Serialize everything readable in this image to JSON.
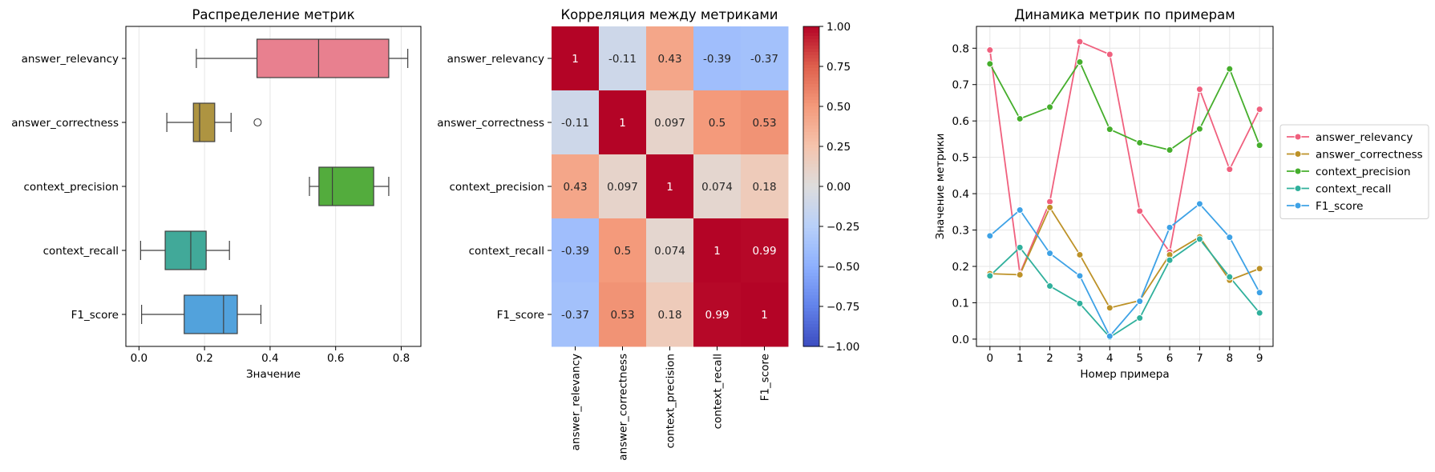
{
  "chart_data": [
    {
      "type": "box",
      "title": "Распределение метрик",
      "xlabel": "Значение",
      "ylabel": "",
      "xlim": [
        -0.04,
        0.86
      ],
      "xticks": [
        0.0,
        0.2,
        0.4,
        0.6,
        0.8
      ],
      "xtick_labels": [
        "0.0",
        "0.2",
        "0.4",
        "0.6",
        "0.8"
      ],
      "grid": "vertical",
      "categories": [
        "answer_relevancy",
        "answer_correctness",
        "context_precision",
        "context_recall",
        "F1_score"
      ],
      "boxes": [
        {
          "name": "answer_relevancy",
          "whisker_low": 0.175,
          "q1": 0.36,
          "median": 0.548,
          "q3": 0.762,
          "whisker_high": 0.82,
          "outliers": [],
          "color": "#e8808f"
        },
        {
          "name": "answer_correctness",
          "whisker_low": 0.085,
          "q1": 0.166,
          "median": 0.185,
          "q3": 0.231,
          "whisker_high": 0.281,
          "outliers": [
            0.362
          ],
          "color": "#ae9441"
        },
        {
          "name": "context_precision",
          "whisker_low": 0.52,
          "q1": 0.549,
          "median": 0.59,
          "q3": 0.716,
          "whisker_high": 0.762,
          "outliers": [],
          "color": "#53ac3d"
        },
        {
          "name": "context_recall",
          "whisker_low": 0.005,
          "q1": 0.08,
          "median": 0.158,
          "q3": 0.205,
          "whisker_high": 0.276,
          "outliers": [],
          "color": "#41a999"
        },
        {
          "name": "F1_score",
          "whisker_low": 0.008,
          "q1": 0.138,
          "median": 0.258,
          "q3": 0.3,
          "whisker_high": 0.372,
          "outliers": [],
          "color": "#52a2dc"
        }
      ]
    },
    {
      "type": "heatmap",
      "title": "Корреляция между метриками",
      "labels": [
        "answer_relevancy",
        "answer_correctness",
        "context_precision",
        "context_recall",
        "F1_score"
      ],
      "values": [
        [
          1,
          -0.11,
          0.43,
          -0.39,
          -0.37
        ],
        [
          -0.11,
          1,
          0.097,
          0.5,
          0.53
        ],
        [
          0.43,
          0.097,
          1,
          0.074,
          0.18
        ],
        [
          -0.39,
          0.5,
          0.074,
          1,
          0.99
        ],
        [
          -0.37,
          0.53,
          0.18,
          0.99,
          1
        ]
      ],
      "value_labels": [
        [
          "1",
          "-0.11",
          "0.43",
          "-0.39",
          "-0.37"
        ],
        [
          "-0.11",
          "1",
          "0.097",
          "0.5",
          "0.53"
        ],
        [
          "0.43",
          "0.097",
          "1",
          "0.074",
          "0.18"
        ],
        [
          "-0.39",
          "0.5",
          "0.074",
          "1",
          "0.99"
        ],
        [
          "-0.37",
          "0.53",
          "0.18",
          "0.99",
          "1"
        ]
      ],
      "colormap": "coolwarm",
      "vmin": -1.0,
      "vmax": 1.0,
      "colorbar_ticks": [
        1.0,
        0.75,
        0.5,
        0.25,
        0.0,
        -0.25,
        -0.5,
        -0.75,
        -1.0
      ],
      "colorbar_tick_labels": [
        "1.00",
        "0.75",
        "0.50",
        "0.25",
        "0.00",
        "−0.25",
        "−0.50",
        "−0.75",
        "−1.00"
      ]
    },
    {
      "type": "line",
      "title": "Динамика метрик по примерам",
      "xlabel": "Номер примера",
      "ylabel": "Значение метрики",
      "x": [
        0,
        1,
        2,
        3,
        4,
        5,
        6,
        7,
        8,
        9
      ],
      "xlim": [
        -0.45,
        9.45
      ],
      "ylim": [
        -0.02,
        0.86
      ],
      "yticks": [
        0.0,
        0.1,
        0.2,
        0.3,
        0.4,
        0.5,
        0.6,
        0.7,
        0.8
      ],
      "ytick_labels": [
        "0.0",
        "0.1",
        "0.2",
        "0.3",
        "0.4",
        "0.5",
        "0.6",
        "0.7",
        "0.8"
      ],
      "grid": true,
      "legend_position": "outside right",
      "series": [
        {
          "name": "answer_relevancy",
          "color": "#f0607e",
          "values": [
            0.795,
            0.18,
            0.378,
            0.818,
            0.783,
            0.352,
            0.24,
            0.687,
            0.467,
            0.632
          ]
        },
        {
          "name": "answer_correctness",
          "color": "#bd9228",
          "values": [
            0.18,
            0.177,
            0.362,
            0.232,
            0.086,
            0.106,
            0.232,
            0.281,
            0.162,
            0.194
          ]
        },
        {
          "name": "context_precision",
          "color": "#45ae2c",
          "values": [
            0.757,
            0.606,
            0.638,
            0.762,
            0.577,
            0.54,
            0.52,
            0.578,
            0.743,
            0.533
          ]
        },
        {
          "name": "context_recall",
          "color": "#30b09c",
          "values": [
            0.174,
            0.252,
            0.146,
            0.098,
            0.005,
            0.058,
            0.217,
            0.275,
            0.171,
            0.072
          ]
        },
        {
          "name": "F1_score",
          "color": "#3ea2e6",
          "values": [
            0.284,
            0.355,
            0.236,
            0.174,
            0.008,
            0.104,
            0.307,
            0.372,
            0.28,
            0.128
          ]
        }
      ]
    }
  ]
}
